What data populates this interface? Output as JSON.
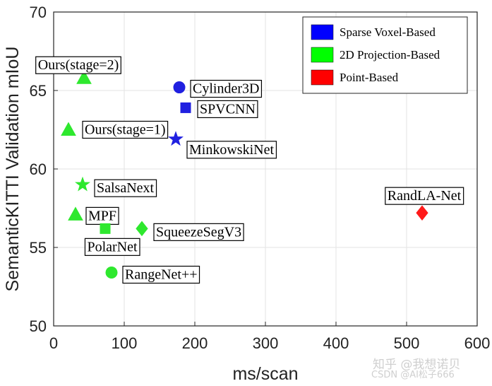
{
  "chart_data": {
    "type": "scatter",
    "title": "",
    "xlabel": "ms/scan",
    "ylabel": "SemanticKITTI Validation mIoU",
    "xlim": [
      0,
      600
    ],
    "ylim": [
      50,
      70
    ],
    "xticks": [
      "0",
      "100",
      "200",
      "300",
      "400",
      "500",
      "600"
    ],
    "yticks": [
      "50",
      "55",
      "60",
      "65",
      "70"
    ],
    "grid": true,
    "legend_position": "top-right",
    "legend": [
      {
        "name": "Sparse Voxel-Based",
        "color": "#0000ff"
      },
      {
        "name": "2D Projection-Based",
        "color": "#00ff00"
      },
      {
        "name": "Point-Based",
        "color": "#ff0000"
      }
    ],
    "points": [
      {
        "label": "Ours(stage=2)",
        "x": 43,
        "y": 65.8,
        "marker": "triangle",
        "group": "2D Projection-Based",
        "color": "#2ee82e"
      },
      {
        "label": "Ours(stage=1)",
        "x": 21,
        "y": 62.5,
        "marker": "triangle",
        "group": "2D Projection-Based",
        "color": "#2ee82e"
      },
      {
        "label": "Cylinder3D",
        "x": 178,
        "y": 65.2,
        "marker": "circle",
        "group": "Sparse Voxel-Based",
        "color": "#2020e0"
      },
      {
        "label": "SPVCNN",
        "x": 187,
        "y": 63.9,
        "marker": "square",
        "group": "Sparse Voxel-Based",
        "color": "#2020e0"
      },
      {
        "label": "MinkowskiNet",
        "x": 173,
        "y": 61.9,
        "marker": "star",
        "group": "Sparse Voxel-Based",
        "color": "#2020e0"
      },
      {
        "label": "SalsaNext",
        "x": 41,
        "y": 59.0,
        "marker": "star",
        "group": "2D Projection-Based",
        "color": "#2ee82e"
      },
      {
        "label": "MPF",
        "x": 31,
        "y": 57.1,
        "marker": "triangle",
        "group": "2D Projection-Based",
        "color": "#2ee82e"
      },
      {
        "label": "PolarNet",
        "x": 73,
        "y": 56.2,
        "marker": "square",
        "group": "2D Projection-Based",
        "color": "#2ee82e"
      },
      {
        "label": "SqueezeSegV3",
        "x": 125,
        "y": 56.2,
        "marker": "diamond",
        "group": "2D Projection-Based",
        "color": "#2ee82e"
      },
      {
        "label": "RangeNet++",
        "x": 82,
        "y": 53.4,
        "marker": "circle",
        "group": "2D Projection-Based",
        "color": "#2ee82e"
      },
      {
        "label": "RandLA-Net",
        "x": 522,
        "y": 57.2,
        "marker": "diamond",
        "group": "Point-Based",
        "color": "#ff1a1a"
      }
    ]
  },
  "watermark": {
    "line1": "知乎 @我想诺贝",
    "line2": "CSDN @AI松子666"
  }
}
